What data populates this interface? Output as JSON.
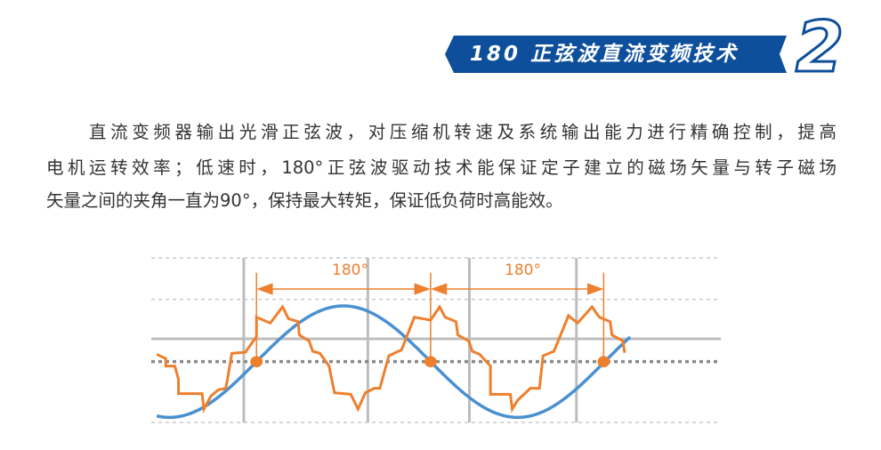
{
  "header": {
    "title": "180 正弦波直流变频技术",
    "section_number": "2",
    "banner_color": "#0e4f9c"
  },
  "paragraph": {
    "lines": [
      "直流变频器输出光滑正弦波，对压缩机转速及系统输出能力进行精确控制，提高",
      "电机运转效率；低速时，180°正弦波驱动技术能保证定子建立的磁场矢量与转子磁场",
      "矢量之间的夹角一直为90°，保持最大转矩，保证低负荷时高能效。"
    ]
  },
  "diagram": {
    "angle_labels": [
      "180°",
      "180°"
    ],
    "colors": {
      "sine": "#4a90d0",
      "stepped": "#ee7f2d",
      "grid": "#bdbdbd",
      "zero_line": "#8a8a8a"
    }
  }
}
